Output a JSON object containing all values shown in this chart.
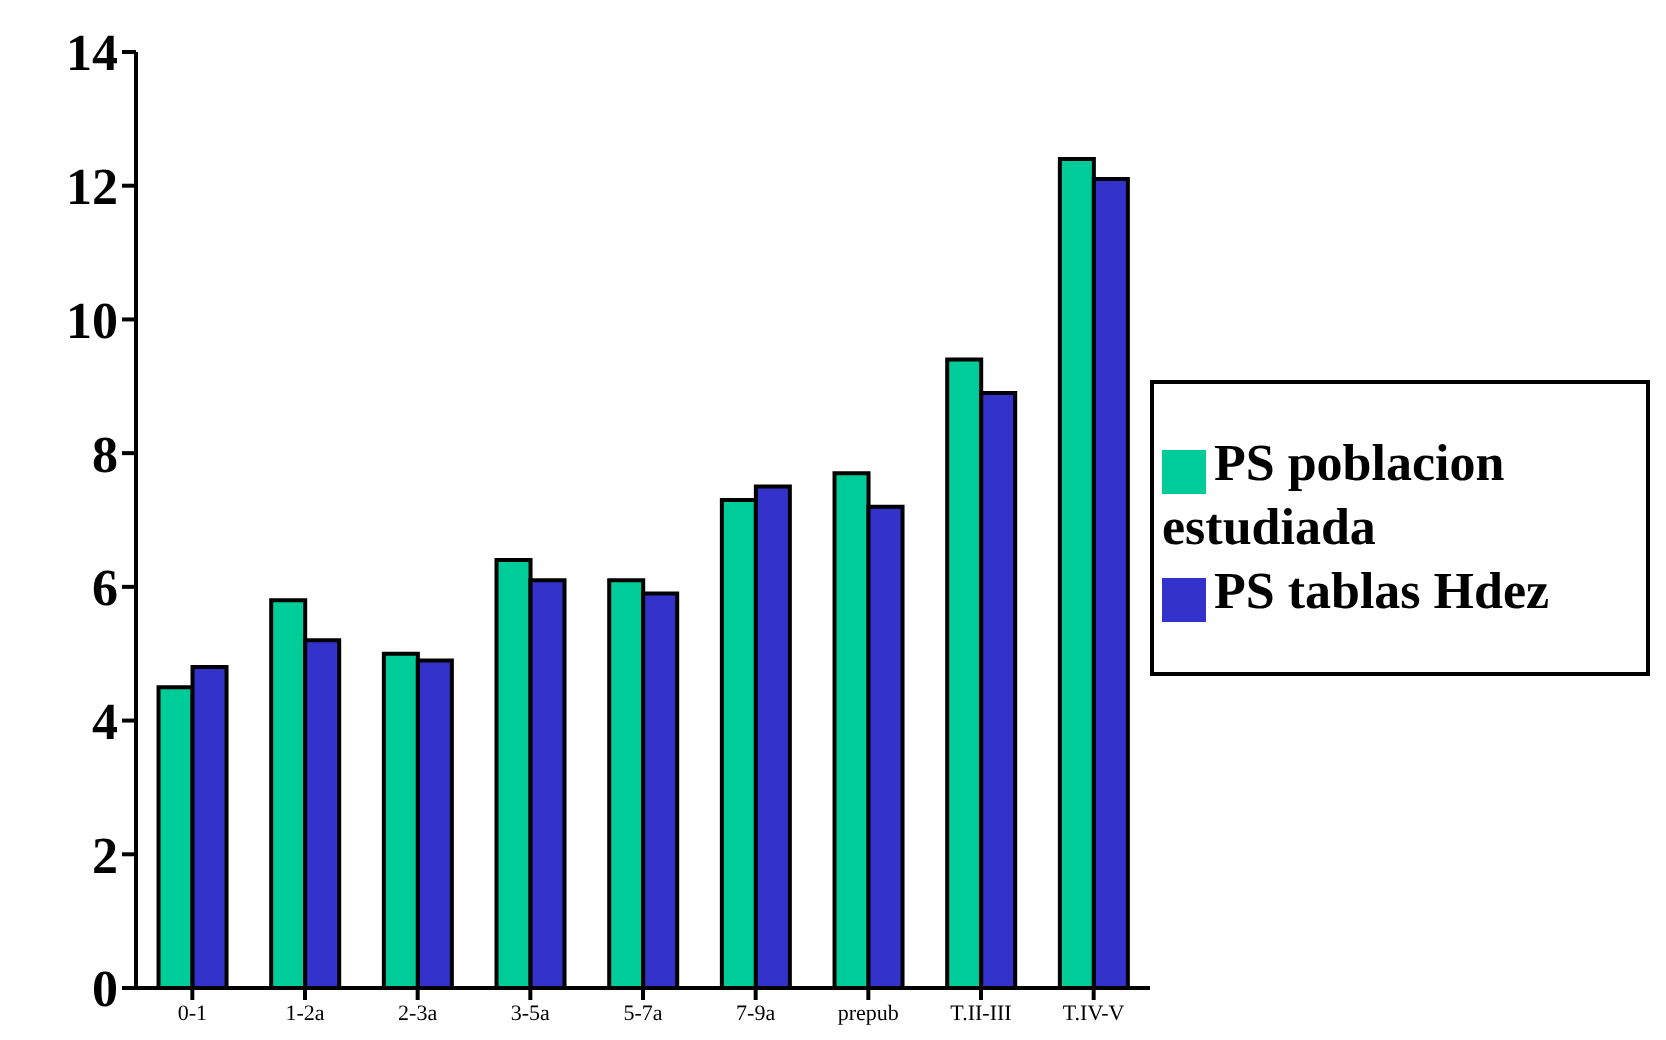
{
  "chart_data": {
    "type": "bar",
    "categories": [
      "0-1",
      "1-2a",
      "2-3a",
      "3-5a",
      "5-7a",
      "7-9a",
      "prepub",
      "T.II-III",
      "T.IV-V"
    ],
    "series": [
      {
        "name": "PS poblacion estudiada",
        "color": "#00cc99",
        "values": [
          4.5,
          5.8,
          5.0,
          6.4,
          6.1,
          7.3,
          7.7,
          9.4,
          12.4
        ]
      },
      {
        "name": "PS tablas Hdez",
        "color": "#3333cc",
        "values": [
          4.8,
          5.2,
          4.9,
          6.1,
          5.9,
          7.5,
          7.2,
          8.9,
          12.1
        ]
      }
    ],
    "ylim": [
      0,
      14
    ],
    "yticks": [
      0,
      2,
      4,
      6,
      8,
      10,
      12,
      14
    ],
    "grid": false,
    "legend": "right"
  }
}
